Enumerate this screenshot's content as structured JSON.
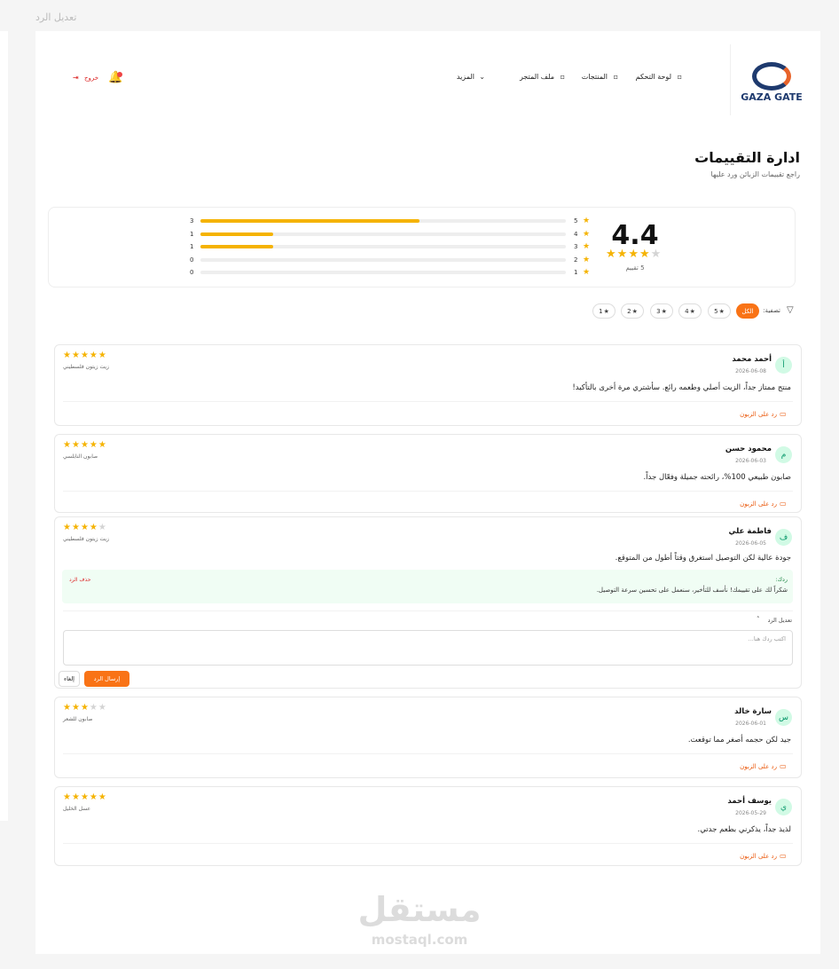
{
  "top_label": "تعديل الرد",
  "nav": {
    "logo": "GAZA GATE",
    "items": [
      "لوحة التحكم",
      "المنتجات",
      "ملف المتجر",
      "المزيد"
    ],
    "logout": "خروج"
  },
  "header": {
    "title": "ادارة التقييمات",
    "subtitle": "راجع تقييمات الزبائن ورد عليها"
  },
  "summary": {
    "average": 4.4,
    "count_label": "5 تقييم",
    "rows": [
      {
        "stars": 5,
        "count": 3
      },
      {
        "stars": 4,
        "count": 1
      },
      {
        "stars": 3,
        "count": 1
      },
      {
        "stars": 2,
        "count": 0
      },
      {
        "stars": 1,
        "count": 0
      }
    ]
  },
  "filter": {
    "label": "تصفية:",
    "options": [
      "الكل",
      5,
      4,
      3,
      2,
      1
    ]
  },
  "reviews": [
    {
      "avatar": "أ",
      "name": "أحمد محمد",
      "date": "2026-06-08",
      "product": "زيت زيتون فلسطيني",
      "rating": 5,
      "text": "منتج ممتاز جداً، الزيت أصلي وطعمه رائع. سأشتري مرة أخرى بالتأكيد!",
      "reply_link": "رد على الزبون"
    },
    {
      "avatar": "م",
      "name": "محمود حسن",
      "date": "2026-06-03",
      "product": "صابون النابلسي",
      "rating": 5,
      "text": "صابون طبيعي 100%، رائحته جميلة وفعّال جداً.",
      "reply_link": "رد على الزبون"
    },
    {
      "avatar": "ف",
      "name": "فاطمة علي",
      "date": "2026-06-05",
      "product": "زيت زيتون فلسطيني",
      "rating": 4,
      "text": "جودة عالية لكن التوصيل استغرق وقتاً أطول من المتوقع.",
      "reply": {
        "label": "ردك:",
        "text": "شكراً لك على تقييمك! نأسف للتأخير، سنعمل على تحسين سرعة التوصيل.",
        "delete": "حذف الرد"
      },
      "edit": {
        "toggle": "تعديل الرد",
        "placeholder": "اكتب ردك هنا...",
        "send": "إرسال الرد",
        "cancel": "إلغاء"
      }
    },
    {
      "avatar": "س",
      "name": "سارة خالد",
      "date": "2026-06-01",
      "product": "صابون للشعر",
      "rating": 3,
      "text": "جيد لكن حجمه أصغر مما توقعت.",
      "reply_link": "رد على الزبون"
    },
    {
      "avatar": "ي",
      "name": "يوسف أحمد",
      "date": "2026-05-29",
      "product": "عسل الخليل",
      "rating": 5,
      "text": "لذيذ جداً، يذكرني بطعم جدتي.",
      "reply_link": "رد على الزبون"
    }
  ],
  "watermark": {
    "logo": "مستقل",
    "site": "mostaql.com"
  }
}
